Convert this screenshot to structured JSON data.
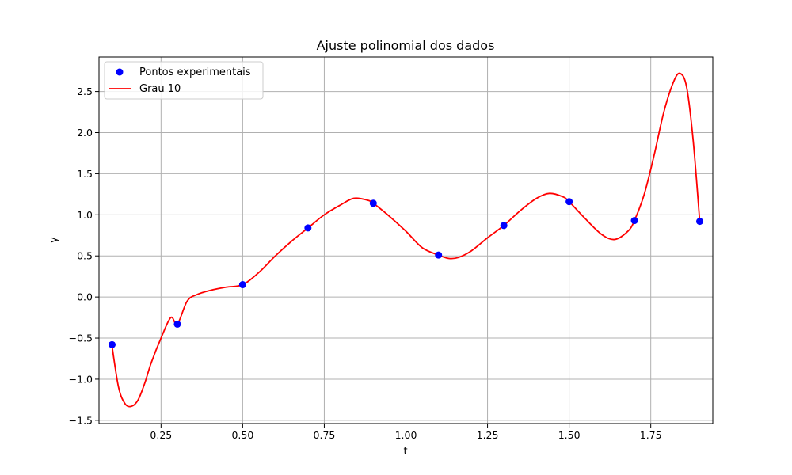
{
  "chart_data": {
    "type": "scatter",
    "title": "Ajuste polinomial dos dados",
    "xlabel": "t",
    "ylabel": "y",
    "xlim": [
      0.06,
      1.94
    ],
    "ylim": [
      -1.54,
      2.92
    ],
    "xticks": [
      0.25,
      0.5,
      0.75,
      1.0,
      1.25,
      1.5,
      1.75
    ],
    "xtick_labels": [
      "0.25",
      "0.50",
      "0.75",
      "1.00",
      "1.25",
      "1.50",
      "1.75"
    ],
    "yticks": [
      -1.5,
      -1.0,
      -0.5,
      0.0,
      0.5,
      1.0,
      1.5,
      2.0,
      2.5
    ],
    "ytick_labels": [
      "−1.5",
      "−1.0",
      "−0.5",
      "0.0",
      "0.5",
      "1.0",
      "1.5",
      "2.0",
      "2.5"
    ],
    "grid": true,
    "legend_position": "top-left",
    "scatter_series": {
      "name": "Pontos experimentais",
      "color": "#0000ff",
      "x": [
        0.1,
        0.3,
        0.5,
        0.7,
        0.9,
        1.1,
        1.3,
        1.5,
        1.7,
        1.9
      ],
      "y": [
        -0.58,
        -0.33,
        0.15,
        0.84,
        1.14,
        0.51,
        0.87,
        1.16,
        0.93,
        0.92
      ]
    },
    "line_series": {
      "name": "Grau 10",
      "color": "#ff0000",
      "x": [
        0.1,
        0.12,
        0.14,
        0.16,
        0.18,
        0.2,
        0.22,
        0.25,
        0.28,
        0.3,
        0.33,
        0.36,
        0.4,
        0.45,
        0.5,
        0.55,
        0.6,
        0.65,
        0.7,
        0.75,
        0.8,
        0.84,
        0.88,
        0.9,
        0.95,
        1.0,
        1.05,
        1.1,
        1.13,
        1.16,
        1.2,
        1.25,
        1.3,
        1.35,
        1.4,
        1.44,
        1.48,
        1.5,
        1.55,
        1.6,
        1.64,
        1.68,
        1.7,
        1.73,
        1.76,
        1.79,
        1.82,
        1.84,
        1.86,
        1.88,
        1.9
      ],
      "y": [
        -0.6,
        -1.1,
        -1.3,
        -1.33,
        -1.25,
        -1.05,
        -0.8,
        -0.5,
        -0.25,
        -0.33,
        -0.05,
        0.03,
        0.08,
        0.12,
        0.15,
        0.3,
        0.5,
        0.68,
        0.84,
        1.0,
        1.12,
        1.2,
        1.18,
        1.14,
        0.98,
        0.8,
        0.6,
        0.51,
        0.47,
        0.48,
        0.56,
        0.72,
        0.87,
        1.05,
        1.2,
        1.26,
        1.22,
        1.16,
        0.95,
        0.76,
        0.7,
        0.8,
        0.93,
        1.25,
        1.72,
        2.25,
        2.62,
        2.72,
        2.55,
        1.9,
        0.92
      ]
    }
  }
}
